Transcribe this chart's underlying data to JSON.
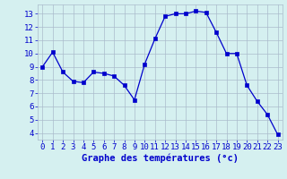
{
  "x": [
    0,
    1,
    2,
    3,
    4,
    5,
    6,
    7,
    8,
    9,
    10,
    11,
    12,
    13,
    14,
    15,
    16,
    17,
    18,
    19,
    20,
    21,
    22,
    23
  ],
  "y": [
    9.0,
    10.1,
    8.6,
    7.9,
    7.8,
    8.6,
    8.5,
    8.3,
    7.6,
    6.5,
    9.2,
    11.1,
    12.8,
    13.0,
    13.0,
    13.2,
    13.1,
    11.6,
    10.0,
    10.0,
    7.6,
    6.4,
    5.4,
    3.9
  ],
  "line_color": "#0000cc",
  "marker": "s",
  "marker_size": 2.5,
  "background_color": "#d5f0f0",
  "grid_color": "#aabbcc",
  "xlabel": "Graphe des températures (°c)",
  "xlabel_color": "#0000cc",
  "xlabel_fontsize": 7.5,
  "tick_color": "#0000cc",
  "tick_fontsize": 6.5,
  "ylim": [
    3.5,
    13.7
  ],
  "xlim": [
    -0.5,
    23.5
  ],
  "yticks": [
    4,
    5,
    6,
    7,
    8,
    9,
    10,
    11,
    12,
    13
  ],
  "xticks": [
    0,
    1,
    2,
    3,
    4,
    5,
    6,
    7,
    8,
    9,
    10,
    11,
    12,
    13,
    14,
    15,
    16,
    17,
    18,
    19,
    20,
    21,
    22,
    23
  ]
}
